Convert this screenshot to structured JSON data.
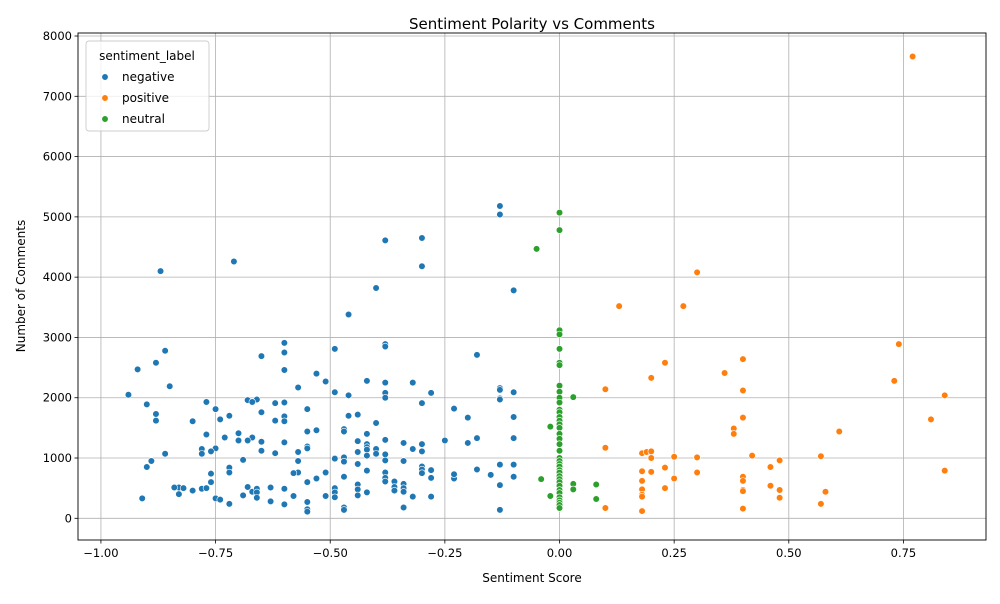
{
  "chart_data": {
    "type": "scatter",
    "title": "Sentiment Polarity vs Comments",
    "xlabel": "Sentiment Score",
    "ylabel": "Number of Comments",
    "xlim": [
      -1.05,
      0.93
    ],
    "ylim": [
      -360,
      8050
    ],
    "xticks": [
      -1.0,
      -0.75,
      -0.5,
      -0.25,
      0.0,
      0.25,
      0.5,
      0.75
    ],
    "xtick_labels": [
      "−1.00",
      "−0.75",
      "−0.50",
      "−0.25",
      "0.00",
      "0.25",
      "0.50",
      "0.75"
    ],
    "yticks": [
      0,
      1000,
      2000,
      3000,
      4000,
      5000,
      6000,
      7000,
      8000
    ],
    "ytick_labels": [
      "0",
      "1000",
      "2000",
      "3000",
      "4000",
      "5000",
      "6000",
      "7000",
      "8000"
    ],
    "grid": true,
    "legend": {
      "title": "sentiment_label",
      "placement": "top-left"
    },
    "series": [
      {
        "name": "negative",
        "color": "#1f77b4",
        "points": [
          [
            -0.13,
            5180
          ],
          [
            -0.13,
            5040
          ],
          [
            -0.3,
            4650
          ],
          [
            -0.38,
            4610
          ],
          [
            -0.3,
            4180
          ],
          [
            -0.71,
            4260
          ],
          [
            -0.87,
            4100
          ],
          [
            -0.4,
            3820
          ],
          [
            -0.1,
            3780
          ],
          [
            -0.46,
            3380
          ],
          [
            -0.6,
            2910
          ],
          [
            -0.38,
            2890
          ],
          [
            -0.38,
            2850
          ],
          [
            -0.49,
            2810
          ],
          [
            -0.86,
            2780
          ],
          [
            -0.6,
            2750
          ],
          [
            -0.18,
            2710
          ],
          [
            -0.65,
            2690
          ],
          [
            -0.88,
            2580
          ],
          [
            -0.92,
            2470
          ],
          [
            -0.6,
            2460
          ],
          [
            -0.53,
            2400
          ],
          [
            -0.51,
            2270
          ],
          [
            -0.42,
            2280
          ],
          [
            -0.38,
            2250
          ],
          [
            -0.32,
            2250
          ],
          [
            -0.85,
            2190
          ],
          [
            -0.57,
            2170
          ],
          [
            -0.13,
            2160
          ],
          [
            -0.13,
            2130
          ],
          [
            -0.1,
            2090
          ],
          [
            -0.49,
            2090
          ],
          [
            -0.38,
            2080
          ],
          [
            -0.28,
            2080
          ],
          [
            -0.46,
            2040
          ],
          [
            -0.94,
            2050
          ],
          [
            -0.38,
            2000
          ],
          [
            -0.13,
            1990
          ],
          [
            -0.13,
            1970
          ],
          [
            -0.68,
            1960
          ],
          [
            -0.66,
            1970
          ],
          [
            -0.67,
            1930
          ],
          [
            -0.77,
            1930
          ],
          [
            -0.62,
            1910
          ],
          [
            -0.6,
            1920
          ],
          [
            -0.9,
            1890
          ],
          [
            -0.3,
            1910
          ],
          [
            -0.75,
            1810
          ],
          [
            -0.55,
            1810
          ],
          [
            -0.23,
            1820
          ],
          [
            -0.65,
            1760
          ],
          [
            -0.88,
            1730
          ],
          [
            -0.72,
            1700
          ],
          [
            -0.46,
            1700
          ],
          [
            -0.44,
            1720
          ],
          [
            -0.6,
            1690
          ],
          [
            -0.2,
            1670
          ],
          [
            -0.1,
            1680
          ],
          [
            -0.88,
            1620
          ],
          [
            -0.8,
            1610
          ],
          [
            -0.74,
            1640
          ],
          [
            -0.62,
            1620
          ],
          [
            -0.6,
            1610
          ],
          [
            -0.4,
            1580
          ],
          [
            -0.53,
            1460
          ],
          [
            -0.55,
            1440
          ],
          [
            -0.47,
            1480
          ],
          [
            -0.47,
            1440
          ],
          [
            -0.42,
            1400
          ],
          [
            -0.77,
            1390
          ],
          [
            -0.7,
            1410
          ],
          [
            -0.73,
            1340
          ],
          [
            -0.67,
            1340
          ],
          [
            -0.7,
            1290
          ],
          [
            -0.68,
            1290
          ],
          [
            -0.65,
            1270
          ],
          [
            -0.6,
            1260
          ],
          [
            -0.44,
            1280
          ],
          [
            -0.42,
            1230
          ],
          [
            -0.42,
            1180
          ],
          [
            -0.38,
            1300
          ],
          [
            -0.34,
            1250
          ],
          [
            -0.3,
            1230
          ],
          [
            -0.25,
            1290
          ],
          [
            -0.2,
            1250
          ],
          [
            -0.18,
            1330
          ],
          [
            -0.1,
            1330
          ],
          [
            -0.75,
            1160
          ],
          [
            -0.78,
            1150
          ],
          [
            -0.76,
            1110
          ],
          [
            -0.78,
            1070
          ],
          [
            -0.86,
            1070
          ],
          [
            -0.65,
            1120
          ],
          [
            -0.62,
            1080
          ],
          [
            -0.57,
            1100
          ],
          [
            -0.55,
            1190
          ],
          [
            -0.55,
            1160
          ],
          [
            -0.44,
            1100
          ],
          [
            -0.42,
            1140
          ],
          [
            -0.4,
            1150
          ],
          [
            -0.4,
            1070
          ],
          [
            -0.42,
            1040
          ],
          [
            -0.38,
            1060
          ],
          [
            -0.32,
            1150
          ],
          [
            -0.3,
            1110
          ],
          [
            -0.47,
            1010
          ],
          [
            -0.49,
            1000
          ],
          [
            -0.49,
            990
          ],
          [
            -0.57,
            950
          ],
          [
            -0.69,
            970
          ],
          [
            -0.89,
            950
          ],
          [
            -0.9,
            850
          ],
          [
            -0.34,
            950
          ],
          [
            -0.38,
            960
          ],
          [
            -0.44,
            900
          ],
          [
            -0.47,
            940
          ],
          [
            -0.13,
            890
          ],
          [
            -0.1,
            890
          ],
          [
            -0.18,
            810
          ],
          [
            -0.15,
            720
          ],
          [
            -0.1,
            690
          ],
          [
            -0.13,
            550
          ],
          [
            -0.23,
            710
          ],
          [
            -0.23,
            660
          ],
          [
            -0.28,
            800
          ],
          [
            -0.28,
            670
          ],
          [
            -0.3,
            860
          ],
          [
            -0.3,
            810
          ],
          [
            -0.3,
            750
          ],
          [
            -0.38,
            760
          ],
          [
            -0.38,
            670
          ],
          [
            -0.42,
            790
          ],
          [
            -0.47,
            690
          ],
          [
            -0.51,
            760
          ],
          [
            -0.53,
            660
          ],
          [
            -0.55,
            600
          ],
          [
            -0.57,
            760
          ],
          [
            -0.58,
            750
          ],
          [
            -0.72,
            840
          ],
          [
            -0.72,
            760
          ],
          [
            -0.76,
            740
          ],
          [
            -0.76,
            600
          ],
          [
            -0.83,
            510
          ],
          [
            -0.82,
            500
          ],
          [
            -0.84,
            510
          ],
          [
            -0.83,
            400
          ],
          [
            -0.8,
            460
          ],
          [
            -0.78,
            490
          ],
          [
            -0.77,
            500
          ],
          [
            -0.91,
            330
          ],
          [
            -0.75,
            330
          ],
          [
            -0.74,
            310
          ],
          [
            -0.72,
            240
          ],
          [
            -0.69,
            380
          ],
          [
            -0.68,
            520
          ],
          [
            -0.67,
            440
          ],
          [
            -0.66,
            490
          ],
          [
            -0.66,
            430
          ],
          [
            -0.66,
            340
          ],
          [
            -0.63,
            510
          ],
          [
            -0.63,
            280
          ],
          [
            -0.6,
            490
          ],
          [
            -0.6,
            230
          ],
          [
            -0.58,
            370
          ],
          [
            -0.55,
            270
          ],
          [
            -0.55,
            150
          ],
          [
            -0.55,
            110
          ],
          [
            -0.51,
            370
          ],
          [
            -0.49,
            500
          ],
          [
            -0.49,
            430
          ],
          [
            -0.49,
            350
          ],
          [
            -0.47,
            180
          ],
          [
            -0.47,
            140
          ],
          [
            -0.44,
            560
          ],
          [
            -0.44,
            480
          ],
          [
            -0.44,
            380
          ],
          [
            -0.42,
            430
          ],
          [
            -0.38,
            610
          ],
          [
            -0.36,
            610
          ],
          [
            -0.36,
            520
          ],
          [
            -0.36,
            460
          ],
          [
            -0.34,
            570
          ],
          [
            -0.34,
            500
          ],
          [
            -0.34,
            440
          ],
          [
            -0.32,
            360
          ],
          [
            -0.34,
            180
          ],
          [
            -0.28,
            360
          ],
          [
            -0.23,
            730
          ],
          [
            -0.13,
            140
          ]
        ]
      },
      {
        "name": "positive",
        "color": "#ff7f0e",
        "points": [
          [
            0.77,
            7660
          ],
          [
            0.3,
            4080
          ],
          [
            0.13,
            3520
          ],
          [
            0.27,
            3520
          ],
          [
            0.74,
            2890
          ],
          [
            0.4,
            2640
          ],
          [
            0.23,
            2580
          ],
          [
            0.36,
            2410
          ],
          [
            0.2,
            2330
          ],
          [
            0.73,
            2280
          ],
          [
            0.1,
            2140
          ],
          [
            0.4,
            2120
          ],
          [
            0.84,
            2040
          ],
          [
            0.81,
            1640
          ],
          [
            0.4,
            1670
          ],
          [
            0.38,
            1490
          ],
          [
            0.38,
            1400
          ],
          [
            0.61,
            1440
          ],
          [
            0.1,
            1170
          ],
          [
            0.18,
            1080
          ],
          [
            0.19,
            1100
          ],
          [
            0.2,
            1110
          ],
          [
            0.2,
            1000
          ],
          [
            0.25,
            1020
          ],
          [
            0.3,
            1010
          ],
          [
            0.42,
            1040
          ],
          [
            0.48,
            960
          ],
          [
            0.57,
            1030
          ],
          [
            0.46,
            850
          ],
          [
            0.84,
            790
          ],
          [
            0.23,
            840
          ],
          [
            0.2,
            770
          ],
          [
            0.18,
            780
          ],
          [
            0.3,
            760
          ],
          [
            0.25,
            660
          ],
          [
            0.18,
            620
          ],
          [
            0.4,
            690
          ],
          [
            0.4,
            620
          ],
          [
            0.46,
            540
          ],
          [
            0.4,
            470
          ],
          [
            0.4,
            450
          ],
          [
            0.48,
            470
          ],
          [
            0.58,
            440
          ],
          [
            0.23,
            500
          ],
          [
            0.18,
            480
          ],
          [
            0.18,
            390
          ],
          [
            0.18,
            360
          ],
          [
            0.48,
            340
          ],
          [
            0.57,
            240
          ],
          [
            0.4,
            160
          ],
          [
            0.1,
            170
          ],
          [
            0.18,
            120
          ]
        ]
      },
      {
        "name": "neutral",
        "color": "#2ca02c",
        "points": [
          [
            0.0,
            5070
          ],
          [
            0.0,
            4780
          ],
          [
            -0.05,
            4470
          ],
          [
            0.0,
            3120
          ],
          [
            0.0,
            3050
          ],
          [
            0.0,
            2810
          ],
          [
            0.0,
            2580
          ],
          [
            0.0,
            2540
          ],
          [
            0.0,
            2200
          ],
          [
            0.0,
            2100
          ],
          [
            0.0,
            2000
          ],
          [
            0.03,
            2010
          ],
          [
            0.0,
            1920
          ],
          [
            0.0,
            1800
          ],
          [
            0.0,
            1760
          ],
          [
            0.0,
            1680
          ],
          [
            0.0,
            1620
          ],
          [
            0.0,
            1560
          ],
          [
            -0.02,
            1520
          ],
          [
            0.0,
            1500
          ],
          [
            0.0,
            1400
          ],
          [
            0.0,
            1320
          ],
          [
            0.0,
            1230
          ],
          [
            0.0,
            1120
          ],
          [
            0.0,
            1000
          ],
          [
            0.0,
            950
          ],
          [
            0.0,
            900
          ],
          [
            0.0,
            860
          ],
          [
            0.0,
            800
          ],
          [
            0.0,
            760
          ],
          [
            0.0,
            700
          ],
          [
            0.0,
            650
          ],
          [
            0.0,
            600
          ],
          [
            -0.04,
            650
          ],
          [
            0.03,
            570
          ],
          [
            0.08,
            560
          ],
          [
            0.0,
            540
          ],
          [
            0.03,
            480
          ],
          [
            0.0,
            470
          ],
          [
            0.0,
            420
          ],
          [
            -0.02,
            370
          ],
          [
            0.0,
            350
          ],
          [
            0.08,
            320
          ],
          [
            0.0,
            300
          ],
          [
            0.0,
            260
          ],
          [
            0.0,
            220
          ],
          [
            0.0,
            170
          ]
        ]
      }
    ]
  }
}
